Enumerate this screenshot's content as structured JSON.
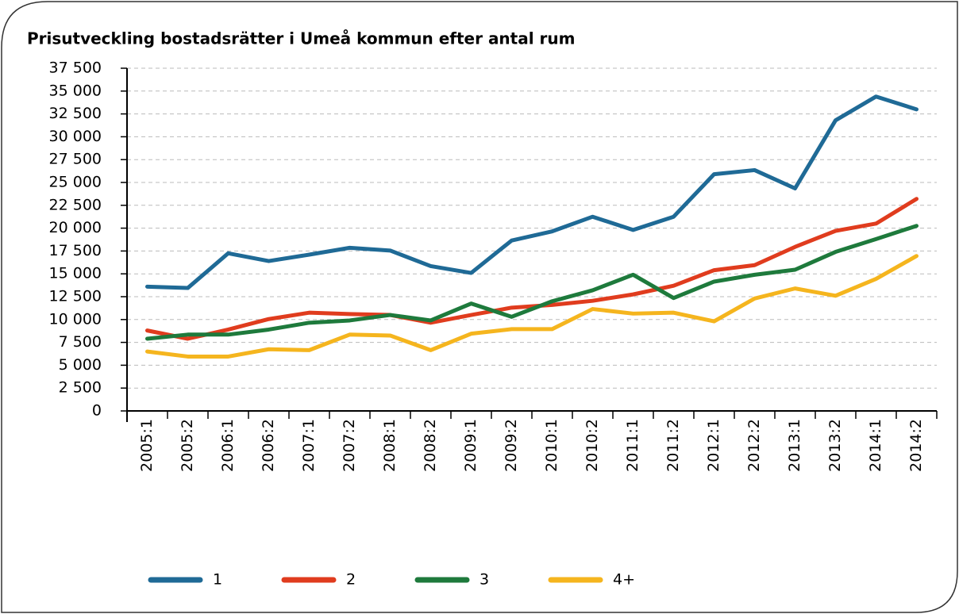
{
  "chart_data": {
    "type": "line",
    "title": "Prisutveckling bostadsrätter i Umeå kommun efter antal rum",
    "categories": [
      "2005:1",
      "2005:2",
      "2006:1",
      "2006:2",
      "2007:1",
      "2007:2",
      "2008:1",
      "2008:2",
      "2009:1",
      "2009:2",
      "2010:1",
      "2010:2",
      "2011:1",
      "2011:2",
      "2012:1",
      "2012:2",
      "2013:1",
      "2013:2",
      "2014:1",
      "2014:2"
    ],
    "series": [
      {
        "name": "1",
        "color": "#1f6a96",
        "values": [
          13600,
          13450,
          17250,
          16400,
          17100,
          17850,
          17550,
          15850,
          15100,
          18650,
          19650,
          21250,
          19800,
          21250,
          25900,
          26350,
          24350,
          31800,
          34400,
          33000
        ]
      },
      {
        "name": "2",
        "color": "#e03c1e",
        "values": [
          8800,
          7900,
          8900,
          10050,
          10750,
          10600,
          10500,
          9650,
          10500,
          11300,
          11600,
          12050,
          12750,
          13700,
          15400,
          15950,
          17950,
          19700,
          20500,
          23200
        ]
      },
      {
        "name": "3",
        "color": "#1e7a3c",
        "values": [
          7900,
          8350,
          8350,
          8900,
          9650,
          9900,
          10500,
          9900,
          11750,
          10300,
          12000,
          13200,
          14900,
          12350,
          14150,
          14900,
          15450,
          17400,
          18800,
          20250
        ]
      },
      {
        "name": "4+",
        "color": "#f5b51e",
        "values": [
          6500,
          5950,
          5950,
          6750,
          6650,
          8350,
          8250,
          6650,
          8450,
          8950,
          8950,
          11150,
          10650,
          10750,
          9800,
          12300,
          13400,
          12600,
          14450,
          16950
        ]
      }
    ],
    "ylim": [
      0,
      37500
    ],
    "yticks": [
      0,
      {
        "value": 2500,
        "label": "2 500"
      },
      {
        "value": 5000,
        "label": "5 000"
      },
      {
        "value": 7500,
        "label": "7 500"
      },
      {
        "value": 10000,
        "label": "10 000"
      },
      {
        "value": 12500,
        "label": "12 500"
      },
      {
        "value": 15000,
        "label": "15 000"
      },
      {
        "value": 17500,
        "label": "17 500"
      },
      {
        "value": 20000,
        "label": "20 000"
      },
      {
        "value": 22500,
        "label": "22 500"
      },
      {
        "value": 25000,
        "label": "25 000"
      },
      {
        "value": 27500,
        "label": "27 500"
      },
      {
        "value": 30000,
        "label": "30 000"
      },
      {
        "value": 32500,
        "label": "32 500"
      },
      {
        "value": 35000,
        "label": "35 000"
      },
      {
        "value": 37500,
        "label": "37 500"
      }
    ],
    "grid": true
  }
}
